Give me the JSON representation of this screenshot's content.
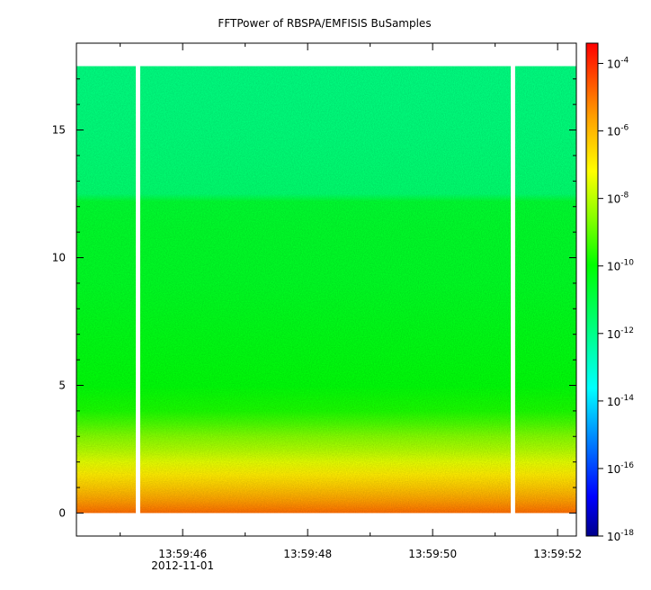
{
  "chart_data": {
    "type": "heatmap",
    "title": "FFTPower of RBSPA/EMFISIS  BuSamples",
    "xlabel": "",
    "ylabel": "",
    "x_ticks": [
      {
        "label": "13:59:46",
        "sublabel": "2012-11-01",
        "value": 46
      },
      {
        "label": "13:59:48",
        "sublabel": "",
        "value": 48
      },
      {
        "label": "13:59:50",
        "sublabel": "",
        "value": 50
      },
      {
        "label": "13:59:52",
        "sublabel": "",
        "value": 52
      }
    ],
    "xlim": [
      44.3,
      52.3
    ],
    "ylim": [
      -0.9,
      18.4
    ],
    "y_ticks": [
      {
        "label": "0",
        "value": 0
      },
      {
        "label": "5",
        "value": 5
      },
      {
        "label": "10",
        "value": 10
      },
      {
        "label": "15",
        "value": 15
      }
    ],
    "data_extent": {
      "y": [
        0,
        17.5
      ]
    },
    "gaps": [
      {
        "x_start": 45.25,
        "x_end": 45.32
      },
      {
        "x_start": 51.25,
        "x_end": 51.32
      }
    ],
    "power_profile_log10": [
      {
        "y": 0.0,
        "log10": -4.9
      },
      {
        "y": 0.5,
        "log10": -5.6
      },
      {
        "y": 1.0,
        "log10": -6.3
      },
      {
        "y": 1.5,
        "log10": -6.9
      },
      {
        "y": 2.0,
        "log10": -7.5
      },
      {
        "y": 2.5,
        "log10": -8.1
      },
      {
        "y": 3.0,
        "log10": -8.6
      },
      {
        "y": 3.5,
        "log10": -9.2
      },
      {
        "y": 4.0,
        "log10": -9.7
      },
      {
        "y": 5.0,
        "log10": -10.1
      },
      {
        "y": 7.0,
        "log10": -10.3
      },
      {
        "y": 9.0,
        "log10": -10.5
      },
      {
        "y": 11.0,
        "log10": -10.6
      },
      {
        "y": 12.2,
        "log10": -10.7
      },
      {
        "y": 12.5,
        "log10": -11.6
      },
      {
        "y": 15.0,
        "log10": -11.8
      },
      {
        "y": 17.5,
        "log10": -11.9
      }
    ],
    "colorbar": {
      "scale": "log",
      "range_log10": [
        -18,
        -3.4
      ],
      "ticks": [
        {
          "base": "10",
          "exp": "-4",
          "log10": -4
        },
        {
          "base": "10",
          "exp": "-6",
          "log10": -6
        },
        {
          "base": "10",
          "exp": "-8",
          "log10": -8
        },
        {
          "base": "10",
          "exp": "-10",
          "log10": -10
        },
        {
          "base": "10",
          "exp": "-12",
          "log10": -12
        },
        {
          "base": "10",
          "exp": "-14",
          "log10": -14
        },
        {
          "base": "10",
          "exp": "-16",
          "log10": -16
        },
        {
          "base": "10",
          "exp": "-18",
          "log10": -18
        }
      ],
      "colors": [
        "#00008b",
        "#0000ff",
        "#00a0ff",
        "#00ffff",
        "#00ff80",
        "#00ff00",
        "#80ff00",
        "#ffff00",
        "#ffa000",
        "#ff0000"
      ]
    },
    "grid": false,
    "legend": "none"
  }
}
